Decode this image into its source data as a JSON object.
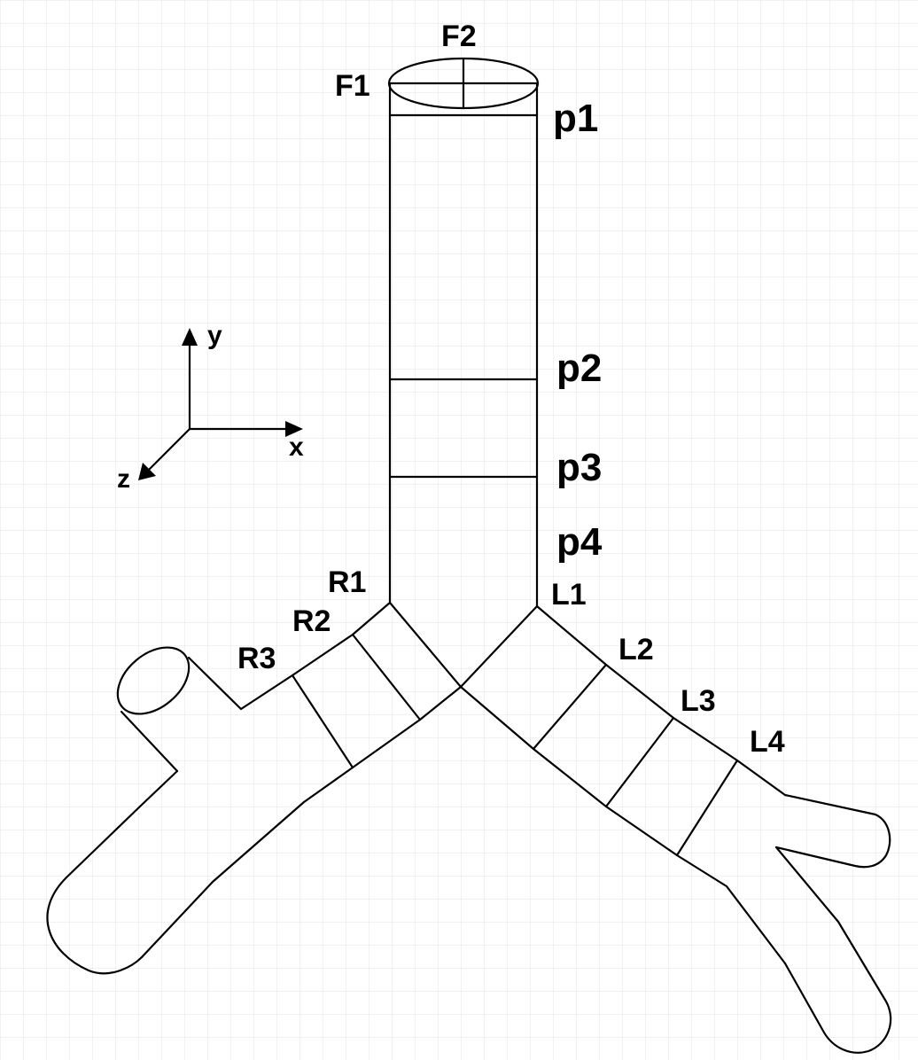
{
  "labels": {
    "F1": "F1",
    "F2": "F2",
    "p1": "p1",
    "p2": "p2",
    "p3": "p3",
    "p4": "p4",
    "R1": "R1",
    "R2": "R2",
    "R3": "R3",
    "L1": "L1",
    "L2": "L2",
    "L3": "L3",
    "L4": "L4"
  },
  "axes": {
    "x": "x",
    "y": "y",
    "z": "z"
  },
  "colors": {
    "stroke": "#000000",
    "grid": "#e6e6e6",
    "background": "#ffffff"
  }
}
